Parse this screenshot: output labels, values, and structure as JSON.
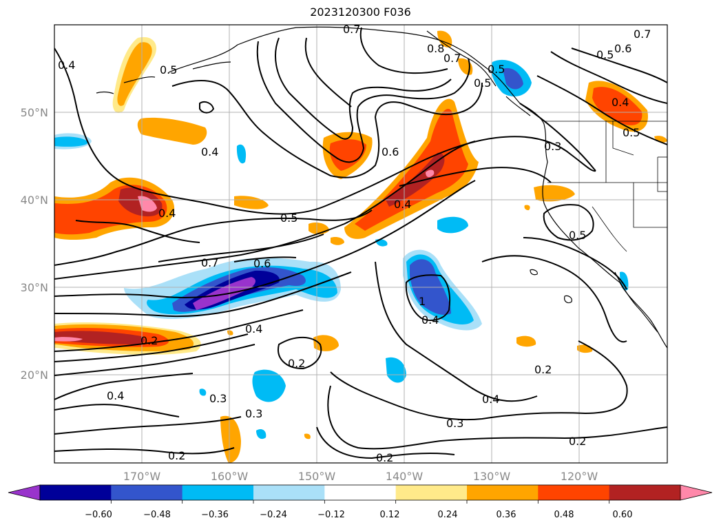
{
  "title": "2023120300 F036",
  "lat_labels": [
    "50°N",
    "40°N",
    "30°N",
    "20°N"
  ],
  "lon_labels": [
    "170°W",
    "160°W",
    "150°W",
    "140°W",
    "130°W",
    "120°W"
  ],
  "colorbar": {
    "ticks": [
      "−0.60",
      "−0.48",
      "−0.36",
      "−0.24",
      "−0.12",
      "0.12",
      "0.24",
      "0.36",
      "0.48",
      "0.60"
    ],
    "colors": [
      "#9933cc",
      "#000099",
      "#3355cc",
      "#00bbf5",
      "#aae0f8",
      "#ffffff",
      "#ffea8a",
      "#ffa500",
      "#ff4400",
      "#b22222",
      "#ff88aa"
    ]
  },
  "contour_labels": [
    {
      "text": "0.7"
    },
    {
      "text": "0.4"
    },
    {
      "text": "0.5"
    },
    {
      "text": "0.8"
    },
    {
      "text": "0.7"
    },
    {
      "text": "0.6"
    },
    {
      "text": "0.5"
    },
    {
      "text": "0.4"
    },
    {
      "text": "0.6"
    },
    {
      "text": "0.4"
    },
    {
      "text": "0.5"
    },
    {
      "text": "0.3"
    },
    {
      "text": "0.4"
    },
    {
      "text": "0.5"
    },
    {
      "text": "0.7"
    },
    {
      "text": "0.6"
    },
    {
      "text": "0.4"
    },
    {
      "text": "0.5"
    },
    {
      "text": "1"
    },
    {
      "text": "0.4"
    },
    {
      "text": "0.2"
    },
    {
      "text": "0.4"
    },
    {
      "text": "0.2"
    },
    {
      "text": "0.4"
    },
    {
      "text": "0.3"
    },
    {
      "text": "0.3"
    },
    {
      "text": "0.2"
    },
    {
      "text": "0.2"
    },
    {
      "text": "0.3"
    },
    {
      "text": "0.2"
    },
    {
      "text": "0.4"
    },
    {
      "text": "0.2"
    },
    {
      "text": "0.7"
    },
    {
      "text": "0.5"
    },
    {
      "text": "0.5"
    }
  ]
}
